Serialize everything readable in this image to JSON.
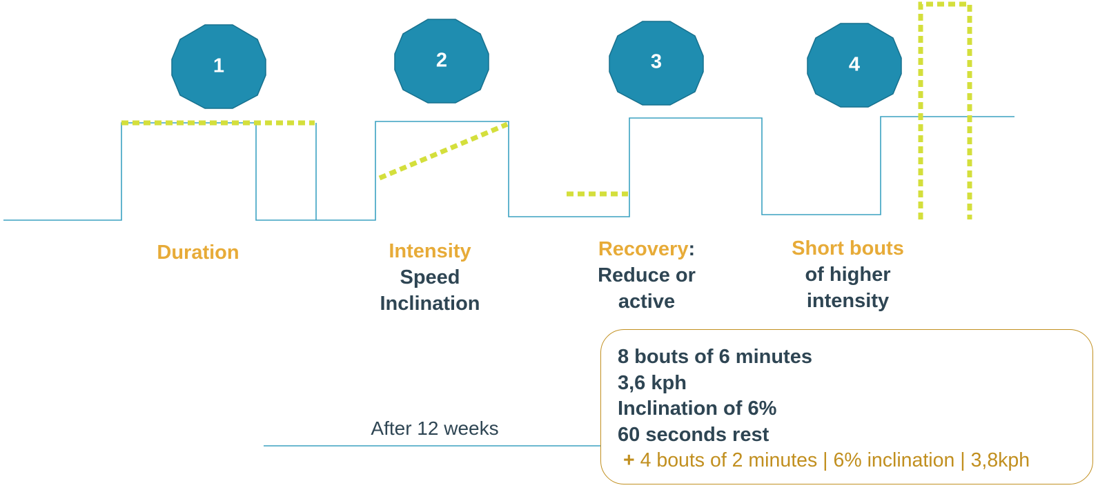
{
  "colors": {
    "octagon_fill": "#1f8db0",
    "octagon_stroke": "#17708d",
    "waveform": "#3aa1c1",
    "dotted_overlay": "#d4df3c",
    "accent": "#e7ab38",
    "text": "#2e4553",
    "box_border": "#c18f1f"
  },
  "steps": [
    {
      "number": "1",
      "title": "Duration",
      "title_suffix": "",
      "detail": []
    },
    {
      "number": "2",
      "title": "Intensity",
      "title_suffix": "",
      "detail": [
        "Speed",
        "Inclination"
      ]
    },
    {
      "number": "3",
      "title": "Recovery",
      "title_suffix": ":",
      "detail": [
        "Reduce or",
        "active"
      ]
    },
    {
      "number": "4",
      "title": "Short bouts",
      "title_suffix": "",
      "detail": [
        "of higher",
        "intensity"
      ]
    }
  ],
  "after_label": "After 12 weeks",
  "program": {
    "lines": [
      "8 bouts of 6 minutes",
      "3,6 kph",
      "Inclination of 6%",
      "60 seconds rest"
    ],
    "extra_prefix": "+",
    "extra_text": " 4 bouts of 2 minutes | 6% inclination | 3,8kph"
  }
}
